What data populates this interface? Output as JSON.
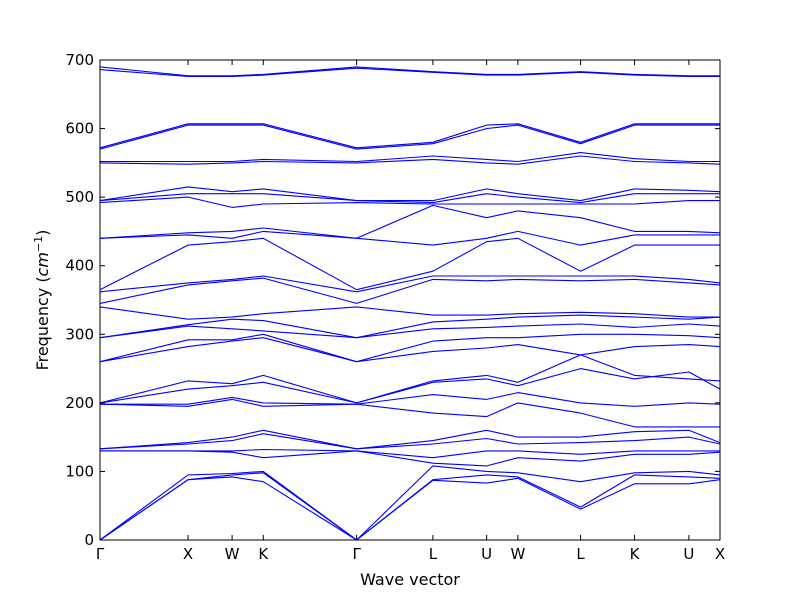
{
  "chart_data": {
    "type": "line",
    "xlabel": "Wave vector",
    "ylabel_base": "Frequency (",
    "ylabel_unit": "cm",
    "ylabel_exp": "−1",
    "ylabel_close": ")",
    "ylim": [
      0,
      700
    ],
    "yticks": [
      "0",
      "100",
      "200",
      "300",
      "400",
      "500",
      "600",
      "700"
    ],
    "xticks": [
      {
        "label": "Γ",
        "x": 0
      },
      {
        "label": "X",
        "x": 1
      },
      {
        "label": "W",
        "x": 1.5
      },
      {
        "label": "K",
        "x": 1.854
      },
      {
        "label": "Γ",
        "x": 2.914
      },
      {
        "label": "L",
        "x": 3.78
      },
      {
        "label": "U",
        "x": 4.39
      },
      {
        "label": "W",
        "x": 4.745
      },
      {
        "label": "L",
        "x": 5.457
      },
      {
        "label": "K",
        "x": 6.07
      },
      {
        "label": "U",
        "x": 6.687
      },
      {
        "label": "X",
        "x": 7.04
      }
    ],
    "line_color": "#0000ff",
    "grid": false,
    "series": [
      {
        "x": [
          0,
          1,
          1.5,
          1.854,
          2.914,
          3.78,
          4.39,
          4.745,
          5.457,
          6.07,
          6.687,
          7.04
        ],
        "y": [
          0,
          88,
          92,
          85,
          0,
          87,
          83,
          90,
          45,
          82,
          82,
          88
        ]
      },
      {
        "x": [
          0,
          1,
          1.5,
          1.854,
          2.914,
          3.78,
          4.39,
          4.745,
          5.457,
          6.07,
          6.687,
          7.04
        ],
        "y": [
          0,
          88,
          95,
          98,
          0,
          88,
          95,
          92,
          48,
          95,
          92,
          90
        ]
      },
      {
        "x": [
          0,
          1,
          1.5,
          1.854,
          2.914,
          3.78,
          4.39,
          4.745,
          5.457,
          6.07,
          6.687,
          7.04
        ],
        "y": [
          0,
          95,
          97,
          100,
          0,
          108,
          100,
          98,
          85,
          98,
          100,
          95
        ]
      },
      {
        "x": [
          0,
          1,
          1.5,
          1.854,
          2.914,
          3.78,
          4.39,
          4.745,
          5.457,
          6.07,
          6.687,
          7.04
        ],
        "y": [
          130,
          130,
          128,
          120,
          130,
          112,
          108,
          120,
          115,
          125,
          125,
          128
        ]
      },
      {
        "x": [
          0,
          1,
          1.5,
          1.854,
          2.914,
          3.78,
          4.39,
          4.745,
          5.457,
          6.07,
          6.687,
          7.04
        ],
        "y": [
          130,
          130,
          130,
          132,
          130,
          120,
          130,
          130,
          125,
          130,
          130,
          130
        ]
      },
      {
        "x": [
          0,
          1,
          1.5,
          1.854,
          2.914,
          3.78,
          4.39,
          4.745,
          5.457,
          6.07,
          6.687,
          7.04
        ],
        "y": [
          133,
          140,
          145,
          155,
          133,
          140,
          148,
          140,
          142,
          145,
          150,
          140
        ]
      },
      {
        "x": [
          0,
          1,
          1.5,
          1.854,
          2.914,
          3.78,
          4.39,
          4.745,
          5.457,
          6.07,
          6.687,
          7.04
        ],
        "y": [
          133,
          142,
          150,
          160,
          133,
          145,
          160,
          150,
          150,
          158,
          160,
          142
        ]
      },
      {
        "x": [
          0,
          1,
          1.5,
          1.854,
          2.914,
          3.78,
          4.39,
          4.745,
          5.457,
          6.07,
          6.687,
          7.04
        ],
        "y": [
          198,
          195,
          205,
          195,
          198,
          185,
          180,
          200,
          185,
          165,
          165,
          165
        ]
      },
      {
        "x": [
          0,
          1,
          1.5,
          1.854,
          2.914,
          3.78,
          4.39,
          4.745,
          5.457,
          6.07,
          6.687,
          7.04
        ],
        "y": [
          198,
          198,
          208,
          200,
          198,
          212,
          205,
          215,
          200,
          195,
          200,
          198
        ]
      },
      {
        "x": [
          0,
          1,
          1.5,
          1.854,
          2.914,
          3.78,
          4.39,
          4.745,
          5.457,
          6.07,
          6.687,
          7.04
        ],
        "y": [
          200,
          220,
          225,
          230,
          200,
          230,
          235,
          225,
          250,
          235,
          245,
          220
        ]
      },
      {
        "x": [
          0,
          1,
          1.5,
          1.854,
          2.914,
          3.78,
          4.39,
          4.745,
          5.457,
          6.07,
          6.687,
          7.04
        ],
        "y": [
          200,
          232,
          228,
          240,
          200,
          232,
          240,
          230,
          270,
          240,
          235,
          232
        ]
      },
      {
        "x": [
          0,
          1,
          1.5,
          1.854,
          2.914,
          3.78,
          4.39,
          4.745,
          5.457,
          6.07,
          6.687,
          7.04
        ],
        "y": [
          260,
          282,
          290,
          295,
          260,
          275,
          280,
          285,
          270,
          282,
          285,
          282
        ]
      },
      {
        "x": [
          0,
          1,
          1.5,
          1.854,
          2.914,
          3.78,
          4.39,
          4.745,
          5.457,
          6.07,
          6.687,
          7.04
        ],
        "y": [
          260,
          292,
          292,
          300,
          260,
          290,
          295,
          295,
          300,
          300,
          298,
          295
        ]
      },
      {
        "x": [
          0,
          1,
          1.5,
          1.854,
          2.914,
          3.78,
          4.39,
          4.745,
          5.457,
          6.07,
          6.687,
          7.04
        ],
        "y": [
          295,
          312,
          308,
          305,
          295,
          308,
          310,
          312,
          315,
          310,
          315,
          312
        ]
      },
      {
        "x": [
          0,
          1,
          1.5,
          1.854,
          2.914,
          3.78,
          4.39,
          4.745,
          5.457,
          6.07,
          6.687,
          7.04
        ],
        "y": [
          295,
          314,
          322,
          320,
          295,
          318,
          322,
          325,
          328,
          325,
          322,
          325
        ]
      },
      {
        "x": [
          0,
          1,
          1.5,
          1.854,
          2.914,
          3.78,
          4.39,
          4.745,
          5.457,
          6.07,
          6.687,
          7.04
        ],
        "y": [
          340,
          322,
          325,
          330,
          340,
          328,
          328,
          330,
          332,
          330,
          325,
          325
        ]
      },
      {
        "x": [
          0,
          1,
          1.5,
          1.854,
          2.914,
          3.78,
          4.39,
          4.745,
          5.457,
          6.07,
          6.687,
          7.04
        ],
        "y": [
          345,
          372,
          378,
          382,
          345,
          380,
          378,
          380,
          378,
          380,
          375,
          372
        ]
      },
      {
        "x": [
          0,
          1,
          1.5,
          1.854,
          2.914,
          3.78,
          4.39,
          4.745,
          5.457,
          6.07,
          6.687,
          7.04
        ],
        "y": [
          362,
          375,
          380,
          385,
          362,
          385,
          385,
          385,
          385,
          385,
          380,
          375
        ]
      },
      {
        "x": [
          0,
          1,
          1.5,
          1.854,
          2.914,
          3.78,
          4.39,
          4.745,
          5.457,
          6.07,
          6.687,
          7.04
        ],
        "y": [
          365,
          430,
          435,
          440,
          365,
          392,
          435,
          440,
          392,
          430,
          430,
          430
        ]
      },
      {
        "x": [
          0,
          1,
          1.5,
          1.854,
          2.914,
          3.78,
          4.39,
          4.745,
          5.457,
          6.07,
          6.687,
          7.04
        ],
        "y": [
          440,
          445,
          440,
          450,
          440,
          430,
          440,
          450,
          430,
          445,
          445,
          445
        ]
      },
      {
        "x": [
          0,
          1,
          1.5,
          1.854,
          2.914,
          3.78,
          4.39,
          4.745,
          5.457,
          6.07,
          6.687,
          7.04
        ],
        "y": [
          440,
          448,
          450,
          455,
          440,
          488,
          470,
          480,
          470,
          450,
          450,
          448
        ]
      },
      {
        "x": [
          0,
          1,
          1.5,
          1.854,
          2.914,
          3.78,
          4.39,
          4.745,
          5.457,
          6.07,
          6.687,
          7.04
        ],
        "y": [
          492,
          500,
          485,
          490,
          492,
          490,
          490,
          490,
          490,
          490,
          495,
          495
        ]
      },
      {
        "x": [
          0,
          1,
          1.5,
          1.854,
          2.914,
          3.78,
          4.39,
          4.745,
          5.457,
          6.07,
          6.687,
          7.04
        ],
        "y": [
          495,
          505,
          505,
          505,
          495,
          492,
          505,
          500,
          492,
          505,
          505,
          505
        ]
      },
      {
        "x": [
          0,
          1,
          1.5,
          1.854,
          2.914,
          3.78,
          4.39,
          4.745,
          5.457,
          6.07,
          6.687,
          7.04
        ],
        "y": [
          495,
          515,
          508,
          512,
          495,
          495,
          512,
          505,
          495,
          512,
          510,
          508
        ]
      },
      {
        "x": [
          0,
          1,
          1.5,
          1.854,
          2.914,
          3.78,
          4.39,
          4.745,
          5.457,
          6.07,
          6.687,
          7.04
        ],
        "y": [
          550,
          548,
          550,
          552,
          550,
          555,
          550,
          548,
          560,
          552,
          550,
          548
        ]
      },
      {
        "x": [
          0,
          1,
          1.5,
          1.854,
          2.914,
          3.78,
          4.39,
          4.745,
          5.457,
          6.07,
          6.687,
          7.04
        ],
        "y": [
          552,
          552,
          552,
          555,
          552,
          560,
          555,
          552,
          565,
          556,
          552,
          552
        ]
      },
      {
        "x": [
          0,
          1,
          1.5,
          1.854,
          2.914,
          3.78,
          4.39,
          4.745,
          5.457,
          6.07,
          6.687,
          7.04
        ],
        "y": [
          570,
          605,
          605,
          605,
          570,
          578,
          600,
          605,
          578,
          605,
          605,
          605
        ]
      },
      {
        "x": [
          0,
          1,
          1.5,
          1.854,
          2.914,
          3.78,
          4.39,
          4.745,
          5.457,
          6.07,
          6.687,
          7.04
        ],
        "y": [
          572,
          607,
          607,
          607,
          572,
          580,
          605,
          607,
          580,
          607,
          607,
          607
        ]
      },
      {
        "x": [
          0,
          1,
          1.5,
          1.854,
          2.914,
          3.78,
          4.39,
          4.745,
          5.457,
          6.07,
          6.687,
          7.04
        ],
        "y": [
          686,
          676,
          676,
          678,
          688,
          682,
          678,
          678,
          682,
          678,
          676,
          676
        ]
      },
      {
        "x": [
          0,
          1,
          1.5,
          1.854,
          2.914,
          3.78,
          4.39,
          4.745,
          5.457,
          6.07,
          6.687,
          7.04
        ],
        "y": [
          690,
          677,
          677,
          679,
          690,
          683,
          679,
          679,
          683,
          679,
          677,
          677
        ]
      }
    ]
  }
}
